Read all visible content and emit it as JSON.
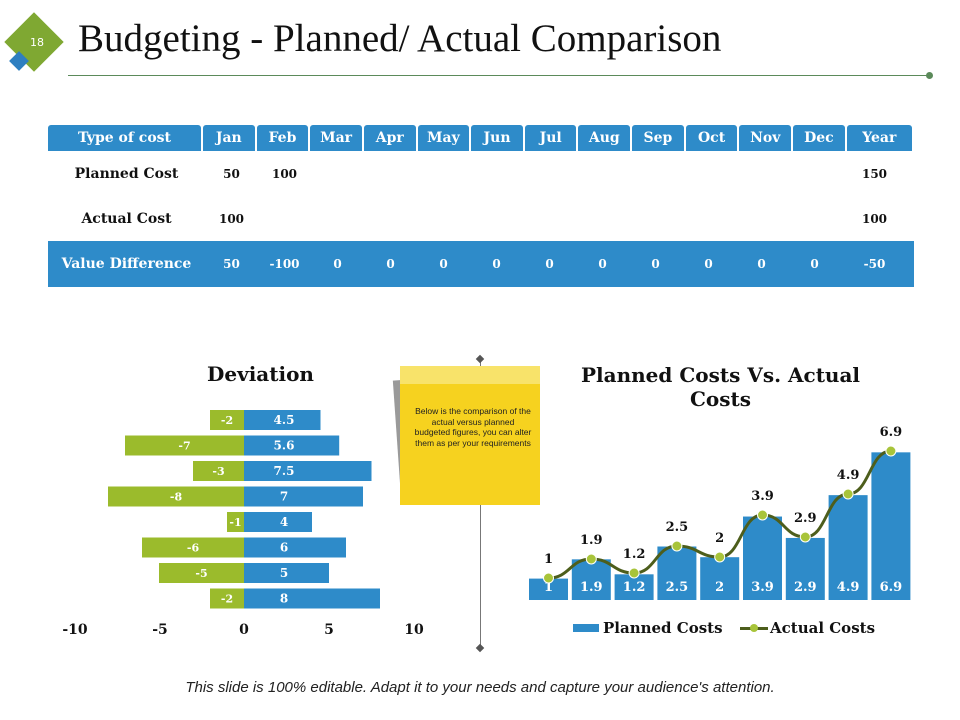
{
  "slide": {
    "number": "18",
    "title": "Budgeting - Planned/ Actual Comparison",
    "footer": "This slide is 100% editable. Adapt it to your needs and capture your audience's attention.",
    "note": "Below is the comparison of the actual versus planned budgeted figures, you can alter them as per your requirements"
  },
  "table": {
    "headers": [
      "Type of cost",
      "Jan",
      "Feb",
      "Mar",
      "Apr",
      "May",
      "Jun",
      "Jul",
      "Aug",
      "Sep",
      "Oct",
      "Nov",
      "Dec",
      "Year"
    ],
    "rows": [
      {
        "label": "Planned Cost",
        "cells": [
          "50",
          "100",
          "",
          "",
          "",
          "",
          "",
          "",
          "",
          "",
          "",
          "",
          ""
        ],
        "year": "150"
      },
      {
        "label": "Actual Cost",
        "cells": [
          "100",
          "",
          "",
          "",
          "",
          "",
          "",
          "",
          "",
          "",
          "",
          "",
          ""
        ],
        "year": "100"
      },
      {
        "label": "Value Difference",
        "cells": [
          "50",
          "-100",
          "0",
          "0",
          "0",
          "0",
          "0",
          "0",
          "0",
          "0",
          "0",
          "0"
        ],
        "year": "-50"
      }
    ]
  },
  "colors": {
    "blue": "#2e8bc9",
    "green": "#9bbb2c",
    "olive": "#4d5e1c",
    "green_dot": "#a8c43a"
  },
  "chart_data": [
    {
      "type": "bar",
      "orientation": "horizontal-diverging",
      "title": "Deviation",
      "series": [
        {
          "name": "negative",
          "values": [
            -2,
            -7,
            -3,
            -8,
            -1,
            -6,
            -5,
            -2
          ]
        },
        {
          "name": "positive",
          "values": [
            4.5,
            5.6,
            7.5,
            7,
            4,
            6,
            5,
            8
          ]
        }
      ],
      "xlim": [
        -10,
        10
      ],
      "xticks": [
        "-10",
        "-5",
        "0",
        "5",
        "10"
      ]
    },
    {
      "type": "bar",
      "title": "Planned Costs Vs. Actual Costs",
      "series": [
        {
          "name": "Planned Costs",
          "type": "bar",
          "values": [
            1,
            1.9,
            1.2,
            2.5,
            2,
            3.9,
            2.9,
            4.9,
            6.9
          ]
        },
        {
          "name": "Actual Costs",
          "type": "line",
          "values": [
            1,
            1.9,
            1.2,
            2.5,
            2,
            3.9,
            2.9,
            4.9,
            6.9
          ]
        }
      ],
      "ylim": [
        0,
        8
      ]
    }
  ]
}
